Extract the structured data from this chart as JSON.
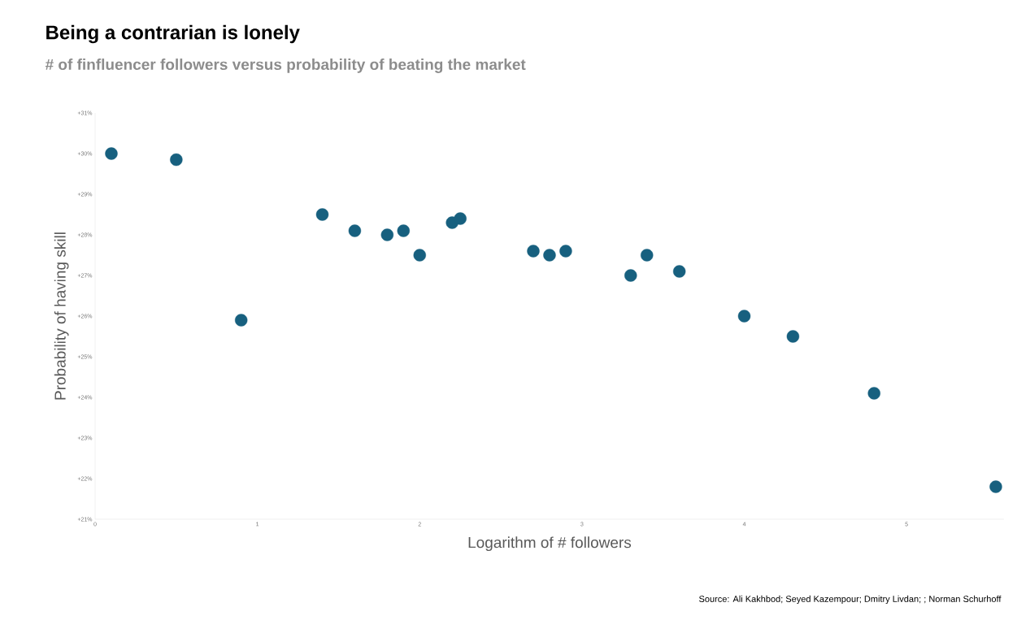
{
  "chart_data": {
    "type": "scatter",
    "title": "Being a contrarian is lonely",
    "subtitle": "# of finfluencer followers versus probability of beating the market",
    "xlabel": "Logarithm of # followers",
    "ylabel": "Probability of having skill",
    "annotations": [
      "Source: Ali Kakhbod; Seyed Kazempour; Dmitry Livdan; ; Norman Schurhoff"
    ],
    "x": [
      0.1,
      0.5,
      0.9,
      1.4,
      1.6,
      1.8,
      1.9,
      2.0,
      2.2,
      2.25,
      2.7,
      2.8,
      2.9,
      3.3,
      3.4,
      3.6,
      4.0,
      4.3,
      4.8,
      5.55
    ],
    "values": [
      30.0,
      29.85,
      25.9,
      28.5,
      28.1,
      28.0,
      28.1,
      27.5,
      28.3,
      28.4,
      27.6,
      27.5,
      27.6,
      27.0,
      27.5,
      27.1,
      26.0,
      25.5,
      24.1,
      21.8
    ],
    "color": "#17607f",
    "marker": "circle",
    "xlim": [
      0,
      5.6
    ],
    "xticks": [
      0,
      1,
      2,
      3,
      4,
      5
    ],
    "ylim": [
      21,
      31
    ],
    "yticks": [
      {
        "value": 21,
        "label": "+21%"
      },
      {
        "value": 22,
        "label": "+22%"
      },
      {
        "value": 23,
        "label": "+23%"
      },
      {
        "value": 24,
        "label": "+24%"
      },
      {
        "value": 25,
        "label": "+25%"
      },
      {
        "value": 26,
        "label": "+26%"
      },
      {
        "value": 27,
        "label": "+27%"
      },
      {
        "value": 28,
        "label": "+28%"
      },
      {
        "value": 29,
        "label": "+29%"
      },
      {
        "value": 30,
        "label": "+30%"
      },
      {
        "value": 31,
        "label": "+31%"
      }
    ]
  }
}
